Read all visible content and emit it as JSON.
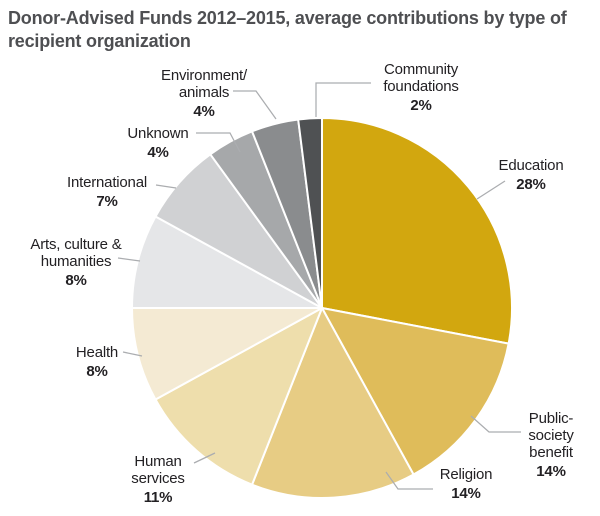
{
  "title": "Donor-Advised Funds 2012–2015, average contributions by type of recipient organization",
  "colors": {
    "background": "#FFFFFF",
    "title_text": "#4E4F52",
    "label_text": "#232124",
    "percent_text": "#232124",
    "leader_line": "#ABADB0",
    "slice_divider": "#FFFFFF"
  },
  "chart_data": {
    "type": "pie",
    "title": "Donor-Advised Funds 2012–2015, average contributions by type of recipient organization",
    "units": "%",
    "start_angle_deg": 0,
    "direction": "clockwise",
    "legend_position": "outside-callout-labels",
    "slices": [
      {
        "key": "education",
        "name": "Education",
        "value": 28,
        "pct_label": "28%",
        "color": "#D2A70F"
      },
      {
        "key": "public_society_benefit",
        "name": "Public-society\nbenefit",
        "value": 14,
        "pct_label": "14%",
        "color": "#DFBC5A"
      },
      {
        "key": "religion",
        "name": "Religion",
        "value": 14,
        "pct_label": "14%",
        "color": "#E7CC84"
      },
      {
        "key": "human_services",
        "name": "Human\nservices",
        "value": 11,
        "pct_label": "11%",
        "color": "#EEDEAC"
      },
      {
        "key": "health",
        "name": "Health",
        "value": 8,
        "pct_label": "8%",
        "color": "#F4EAD3"
      },
      {
        "key": "arts_culture_humanities",
        "name": "Arts, culture &\nhumanities",
        "value": 8,
        "pct_label": "8%",
        "color": "#E5E6E8"
      },
      {
        "key": "international",
        "name": "International",
        "value": 7,
        "pct_label": "7%",
        "color": "#D0D1D3"
      },
      {
        "key": "unknown",
        "name": "Unknown",
        "value": 4,
        "pct_label": "4%",
        "color": "#A6A8AA"
      },
      {
        "key": "environment_animals",
        "name": "Environment/\nanimals",
        "value": 4,
        "pct_label": "4%",
        "color": "#8A8C8E"
      },
      {
        "key": "community_foundations",
        "name": "Community\nfoundations",
        "value": 2,
        "pct_label": "2%",
        "color": "#4F5153"
      }
    ]
  }
}
